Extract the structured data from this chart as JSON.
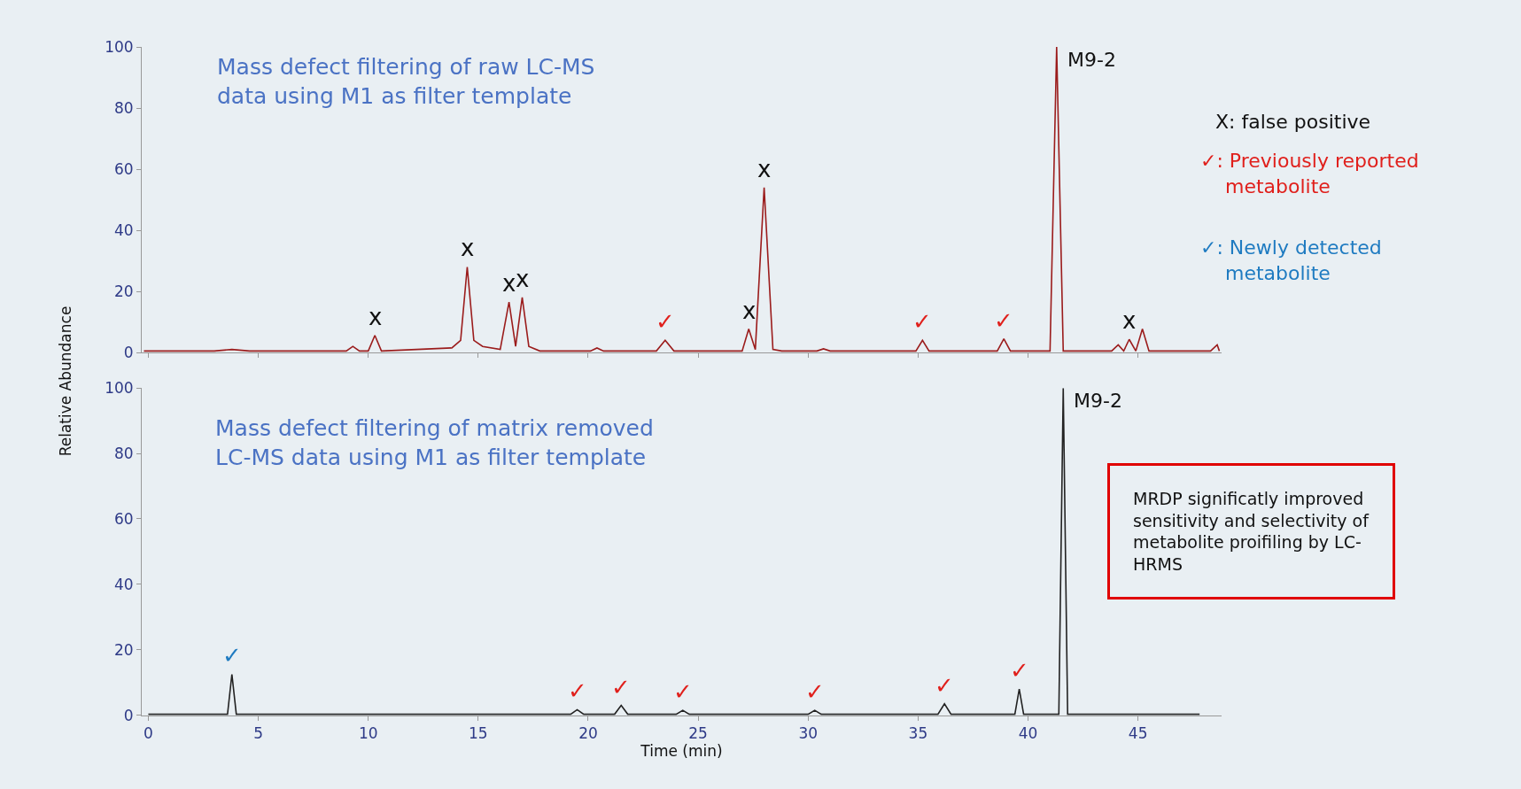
{
  "chart_data": [
    {
      "type": "line",
      "ylabel": "Relative Abundance",
      "xlim": [
        -0.3,
        48.8
      ],
      "xticks": [
        0,
        5,
        10,
        15,
        20,
        25,
        30,
        35,
        40,
        45
      ],
      "ylim": [
        0,
        100
      ],
      "yticks": [
        0,
        20,
        40,
        60,
        80,
        100
      ],
      "tick_labels": "y",
      "grid": false,
      "marker": "none",
      "line_style": "solid",
      "series": [
        {
          "color": "#9b1c1c",
          "x": [
            -0.2,
            3,
            3.8,
            4.6,
            9,
            9.3,
            9.6,
            10,
            10.3,
            10.6,
            13.8,
            14.2,
            14.5,
            14.8,
            15.2,
            16,
            16.4,
            16.7,
            17.0,
            17.3,
            17.8,
            20.1,
            20.4,
            20.7,
            23.1,
            23.5,
            23.9,
            27.0,
            27.3,
            27.6,
            28.0,
            28.4,
            28.8,
            30.4,
            30.7,
            31.0,
            34.9,
            35.2,
            35.5,
            38.6,
            38.9,
            39.2,
            41.0,
            41.3,
            41.6,
            43.8,
            44.1,
            44.35,
            44.6,
            44.9,
            45.2,
            45.5,
            48.3,
            48.6,
            48.7
          ],
          "values": [
            0.5,
            0.5,
            1,
            0.5,
            0.5,
            2,
            0.5,
            0.5,
            5.6,
            0.5,
            1.5,
            4,
            28,
            4,
            2,
            1,
            16.5,
            2,
            18,
            2,
            0.5,
            0.5,
            1.5,
            0.5,
            0.5,
            4,
            0.5,
            0.5,
            7.7,
            1,
            54,
            1,
            0.5,
            0.5,
            1.2,
            0.5,
            0.5,
            4,
            0.5,
            0.5,
            4.5,
            0.5,
            0.5,
            100,
            0.5,
            0.5,
            2.5,
            0.5,
            4.3,
            0.5,
            7.7,
            0.5,
            0.5,
            2.5,
            0.5
          ]
        }
      ],
      "annotations": [
        "Mass defect filtering of raw LC-MS\ndata using M1 as filter template",
        "X: false positive",
        "✓: Previously reported\n    metabolite",
        "✓: Newly detected\n    metabolite",
        {
          "text": "x",
          "x": 10.3,
          "y": 5.6
        },
        {
          "text": "x",
          "x": 14.5,
          "y": 28
        },
        {
          "text": "x",
          "x": 16.4,
          "y": 16.5
        },
        {
          "text": "x",
          "x": 17.0,
          "y": 18
        },
        {
          "text": "x",
          "x": 27.3,
          "y": 7.7
        },
        {
          "text": "x",
          "x": 28.0,
          "y": 54
        },
        {
          "text": "x",
          "x": 44.6,
          "y": 4.3
        },
        {
          "text": "✓",
          "x": 23.5,
          "y": 4
        },
        {
          "text": "✓",
          "x": 35.2,
          "y": 4
        },
        {
          "text": "✓",
          "x": 38.9,
          "y": 4.5
        },
        {
          "text": "M9-2",
          "x": 41.3,
          "y": 100
        }
      ]
    },
    {
      "type": "line",
      "xlabel": "Time (min)",
      "xlim": [
        -0.3,
        48.8
      ],
      "xticks": [
        0,
        5,
        10,
        15,
        20,
        25,
        30,
        35,
        40,
        45
      ],
      "ylim": [
        0,
        100
      ],
      "yticks": [
        0,
        20,
        40,
        60,
        80,
        100
      ],
      "grid": false,
      "marker": "none",
      "line_style": "solid",
      "series": [
        {
          "color": "#222222",
          "x": [
            0,
            3.6,
            3.8,
            4.0,
            19.2,
            19.5,
            19.8,
            21.2,
            21.5,
            21.8,
            24.0,
            24.3,
            24.6,
            30.0,
            30.3,
            30.6,
            35.9,
            36.2,
            36.5,
            39.4,
            39.6,
            39.8,
            41.4,
            41.6,
            41.8,
            47.8
          ],
          "values": [
            0.3,
            0.3,
            12.5,
            0.3,
            0.3,
            1.7,
            0.3,
            0.3,
            3,
            0.3,
            0.3,
            1.5,
            0.3,
            0.3,
            1.5,
            0.3,
            0.3,
            3.5,
            0.3,
            0.3,
            8,
            0.3,
            0.3,
            100,
            0.3,
            0.3
          ]
        }
      ],
      "annotations": [
        "Mass defect filtering of matrix removed\nLC-MS data using M1 as filter template",
        "MRDP significatly improved\nsensitivity and selectivity of\nmetabolite proifiling by LC-\nHRMS",
        {
          "text": "✓",
          "x": 3.8,
          "y": 12.5
        },
        {
          "text": "✓",
          "x": 19.5,
          "y": 1.7
        },
        {
          "text": "✓",
          "x": 21.5,
          "y": 3
        },
        {
          "text": "✓",
          "x": 24.3,
          "y": 1.5
        },
        {
          "text": "✓",
          "x": 30.3,
          "y": 1.5
        },
        {
          "text": "✓",
          "x": 36.2,
          "y": 3.5
        },
        {
          "text": "✓",
          "x": 39.6,
          "y": 8
        },
        {
          "text": "M9-2",
          "x": 41.6,
          "y": 100
        }
      ]
    }
  ]
}
